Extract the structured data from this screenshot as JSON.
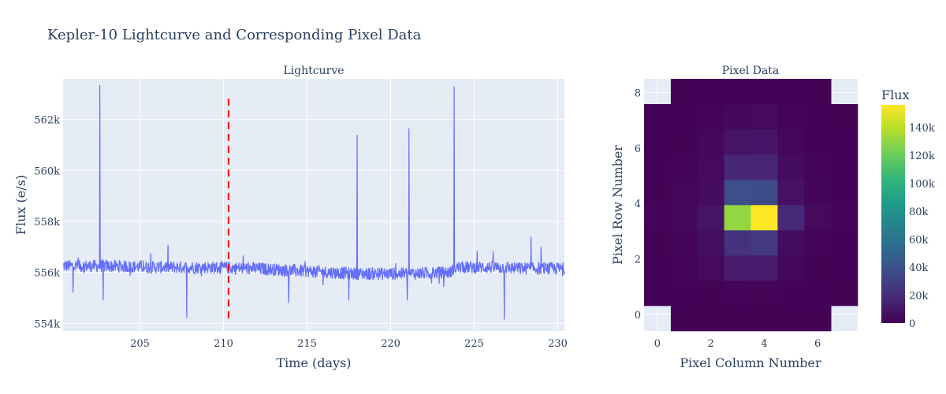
{
  "figure": {
    "title": "Kepler-10 Lightcurve and Corresponding Pixel Data"
  },
  "chart_data": [
    {
      "type": "line",
      "title": "Lightcurve",
      "xlabel": "Time (days)",
      "ylabel": "Flux (e/s)",
      "xlim": [
        200.4,
        230.4
      ],
      "ylim": [
        553700,
        563600
      ],
      "x_ticks": [
        205,
        210,
        215,
        220,
        225,
        230
      ],
      "x_tick_labels": [
        "205",
        "210",
        "215",
        "220",
        "225",
        "230"
      ],
      "y_ticks": [
        554000,
        556000,
        558000,
        560000,
        562000
      ],
      "y_tick_labels": [
        "554k",
        "556k",
        "558k",
        "560k",
        "562k"
      ],
      "grid": true,
      "line_color": "#636efa",
      "marker_line": {
        "x": 210.3,
        "color": "#ff0000",
        "style": "dash"
      },
      "baseline": [
        [
          200.4,
          556250
        ],
        [
          203,
          556250
        ],
        [
          206,
          556200
        ],
        [
          209,
          556200
        ],
        [
          212,
          556150
        ],
        [
          215,
          556050
        ],
        [
          218,
          555950
        ],
        [
          221,
          555950
        ],
        [
          223.6,
          556000
        ],
        [
          223.8,
          556200
        ],
        [
          226,
          556200
        ],
        [
          228,
          556150
        ],
        [
          230.4,
          556150
        ]
      ],
      "noise_amplitude": 250,
      "spikes": [
        {
          "x": 202.6,
          "y": 563350
        },
        {
          "x": 202.8,
          "y": 557600
        },
        {
          "x": 218.0,
          "y": 561400
        },
        {
          "x": 221.1,
          "y": 561650
        },
        {
          "x": 223.8,
          "y": 563300
        },
        {
          "x": 228.4,
          "y": 557400
        },
        {
          "x": 229.0,
          "y": 557000
        }
      ],
      "dips": [
        {
          "x": 201.0,
          "y": 555200
        },
        {
          "x": 202.8,
          "y": 554900
        },
        {
          "x": 207.8,
          "y": 554200
        },
        {
          "x": 213.9,
          "y": 554800
        },
        {
          "x": 217.5,
          "y": 554900
        },
        {
          "x": 221.0,
          "y": 554900
        },
        {
          "x": 226.8,
          "y": 554150
        }
      ]
    },
    {
      "type": "heatmap",
      "title": "Pixel Data",
      "xlabel": "Pixel Column Number",
      "ylabel": "Pixel Row Number",
      "x_ticks": [
        0,
        2,
        4,
        6
      ],
      "y_ticks": [
        0,
        2,
        4,
        6,
        8
      ],
      "colorscale": "Viridis",
      "colorbar_title": "Flux",
      "zmin": 0,
      "zmax": 156000,
      "colorbar_ticks": [
        0,
        20000,
        40000,
        60000,
        80000,
        100000,
        120000,
        140000
      ],
      "colorbar_tick_labels": [
        "0",
        "20k",
        "40k",
        "60k",
        "80k",
        "100k",
        "120k",
        "140k"
      ],
      "z": [
        [
          null,
          500,
          500,
          600,
          600,
          500,
          500,
          null
        ],
        [
          800,
          900,
          1200,
          1800,
          1600,
          1100,
          900,
          700
        ],
        [
          1000,
          1500,
          4000,
          12000,
          11000,
          3500,
          1200,
          900
        ],
        [
          1200,
          2000,
          6000,
          22000,
          26000,
          5000,
          1800,
          1000
        ],
        [
          1300,
          3000,
          8000,
          130000,
          156000,
          18000,
          4000,
          1500
        ],
        [
          1200,
          2500,
          5000,
          38000,
          36000,
          7000,
          2000,
          1100
        ],
        [
          1000,
          1800,
          4000,
          17000,
          16000,
          5000,
          1500,
          900
        ],
        [
          900,
          1200,
          2500,
          8000,
          9000,
          2500,
          1100,
          800
        ],
        [
          800,
          900,
          1500,
          3500,
          4000,
          1500,
          900,
          700
        ],
        [
          null,
          600,
          800,
          1000,
          1000,
          800,
          600,
          null
        ]
      ]
    }
  ]
}
